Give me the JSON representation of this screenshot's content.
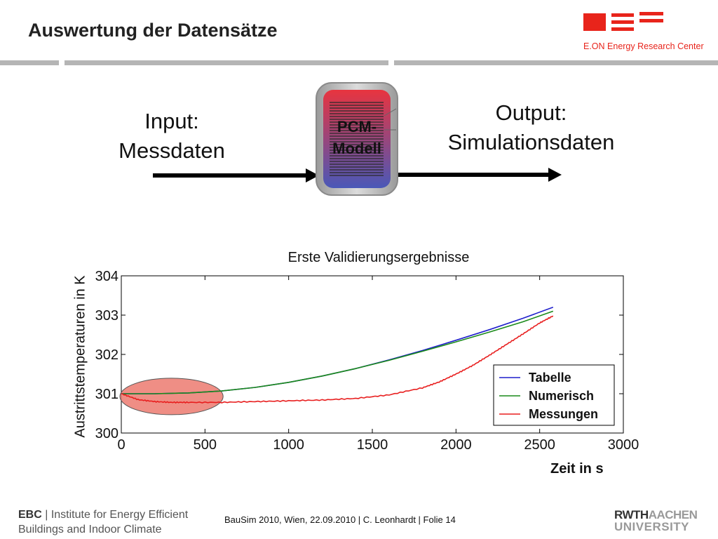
{
  "slide": {
    "title": "Auswertung der Datensätze"
  },
  "logo": {
    "company": "E.ON Energy Research Center"
  },
  "diagram": {
    "input_line1": "Input:",
    "input_line2": "Messdaten",
    "model_line1": "PCM-",
    "model_line2": "Modell",
    "output_line1": "Output:",
    "output_line2": "Simulationsdaten"
  },
  "chart_data": {
    "type": "line",
    "title": "Erste Validierungsergebnisse",
    "xlabel": "Zeit in s",
    "ylabel": "Austrittstemperaturen in K",
    "xlim": [
      0,
      3000
    ],
    "ylim": [
      300,
      304
    ],
    "xticks": [
      0,
      500,
      1000,
      1500,
      2000,
      2500,
      3000
    ],
    "yticks": [
      300,
      301,
      302,
      303,
      304
    ],
    "grid": false,
    "legend_position": "bottom-right",
    "series": [
      {
        "name": "Tabelle",
        "color": "#1f1fcc",
        "x": [
          0,
          200,
          400,
          600,
          800,
          1000,
          1200,
          1400,
          1600,
          1800,
          2000,
          2200,
          2400,
          2580
        ],
        "y": [
          301.0,
          301.0,
          301.02,
          301.07,
          301.16,
          301.29,
          301.45,
          301.64,
          301.86,
          302.1,
          302.36,
          302.63,
          302.92,
          303.2
        ]
      },
      {
        "name": "Numerisch",
        "color": "#1a8a1a",
        "x": [
          0,
          200,
          400,
          600,
          800,
          1000,
          1200,
          1400,
          1600,
          1800,
          2000,
          2200,
          2400,
          2580
        ],
        "y": [
          301.0,
          301.0,
          301.02,
          301.07,
          301.16,
          301.29,
          301.45,
          301.64,
          301.85,
          302.08,
          302.32,
          302.57,
          302.83,
          303.1
        ]
      },
      {
        "name": "Messungen",
        "color": "#e81e1e",
        "x": [
          0,
          100,
          200,
          300,
          400,
          600,
          800,
          1000,
          1200,
          1400,
          1600,
          1800,
          1900,
          2000,
          2100,
          2200,
          2300,
          2400,
          2500,
          2580
        ],
        "y": [
          301.0,
          300.85,
          300.8,
          300.78,
          300.78,
          300.78,
          300.8,
          300.82,
          300.84,
          300.88,
          300.97,
          301.15,
          301.3,
          301.5,
          301.72,
          301.98,
          302.25,
          302.52,
          302.8,
          302.98
        ]
      }
    ],
    "annotation": "highlighted ellipse around initial region 0–600 s"
  },
  "footer": {
    "org_short": "EBC",
    "org_line1": "Institute for Energy Efficient",
    "org_line2": "Buildings and Indoor Climate",
    "center": "BauSim 2010, Wien, 22.09.2010 | C. Leonhardt | Folie 14",
    "uni_part1": "RWTH",
    "uni_part2": "AACHEN",
    "uni_line2": "UNIVERSITY"
  }
}
